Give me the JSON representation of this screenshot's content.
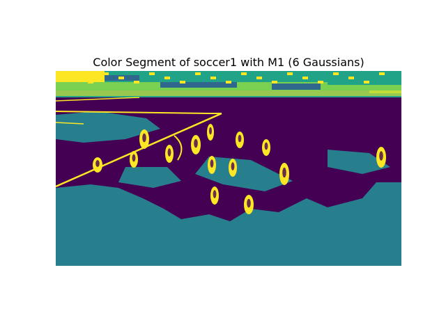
{
  "chart_data": {
    "type": "heatmap",
    "title": "Color Segment of soccer1 with M1 (6 Gaussians)",
    "axes_visible": false,
    "colormap": "viridis",
    "palette": {
      "purple": "#440154",
      "blue": "#30678d",
      "teal": "#277f8e",
      "green_teal": "#20a386",
      "green": "#7ad151",
      "yellow": "#fde725"
    },
    "field_lines_color": "#fde725",
    "player_color": "#fde725"
  }
}
